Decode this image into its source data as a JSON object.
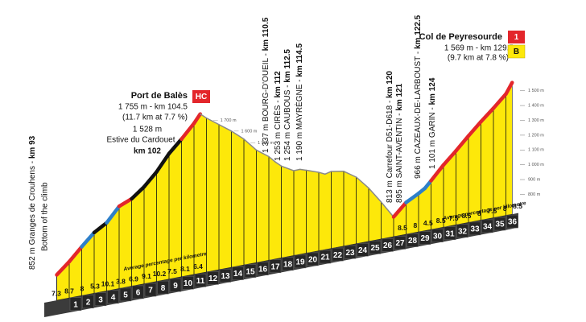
{
  "chart_data": {
    "type": "profile",
    "x": [
      93,
      94,
      95,
      96,
      97,
      98,
      99,
      100,
      101,
      102,
      103,
      104,
      104.5,
      105,
      106,
      107,
      108,
      109,
      110,
      110.5,
      111,
      112,
      112.5,
      113,
      114,
      114.5,
      115,
      116,
      117,
      118,
      119,
      120,
      121,
      122,
      122.5,
      123,
      124,
      125,
      126,
      127,
      128,
      129,
      129.5
    ],
    "values": [
      852,
      925,
      1010,
      1090,
      1140,
      1235,
      1270,
      1335,
      1420,
      1528,
      1610,
      1700,
      1755,
      1720,
      1660,
      1600,
      1530,
      1440,
      1380,
      1337,
      1300,
      1253,
      1254,
      1240,
      1210,
      1190,
      1200,
      1185,
      1130,
      1040,
      930,
      813,
      895,
      940,
      966,
      1010,
      1101,
      1180,
      1265,
      1345,
      1420,
      1500,
      1569
    ],
    "segment_colors": [
      "#e3262b",
      "#e3262b",
      "#2e7fc9",
      "#111111",
      "#2e7fc9",
      "#e3262b",
      "#111111",
      "#111111",
      "#111111",
      "#111111",
      "#e3262b",
      "#e3262b",
      "#8a8a8a",
      "#8a8a8a",
      "#8a8a8a",
      "#8a8a8a",
      "#8a8a8a",
      "#8a8a8a",
      "#8a8a8a",
      "#8a8a8a",
      "#8a8a8a",
      "#8a8a8a",
      "#8a8a8a",
      "#8a8a8a",
      "#8a8a8a",
      "#8a8a8a",
      "#8a8a8a",
      "#8a8a8a",
      "#8a8a8a",
      "#8a8a8a",
      "#8a8a8a",
      "#e3262b",
      "#2e7fc9",
      "#2e7fc9",
      "#2e7fc9",
      "#e3262b",
      "#e3262b",
      "#e3262b",
      "#e3262b",
      "#e3262b",
      "#e3262b",
      "#e3262b",
      "#e3262b"
    ],
    "color": "#fde80a",
    "xlim": [
      92,
      130
    ],
    "ylim": [
      680,
      1800
    ],
    "yticks": [
      {
        "value": 800,
        "label": "800 m"
      },
      {
        "value": 900,
        "label": "900 m"
      },
      {
        "value": 1000,
        "label": "1 000 m"
      },
      {
        "value": 1100,
        "label": "1 100 m"
      },
      {
        "value": 1200,
        "label": "1 200 m"
      },
      {
        "value": 1300,
        "label": "1 300 m"
      },
      {
        "value": 1400,
        "label": "1 400 m"
      },
      {
        "value": 1500,
        "label": "1 500 m"
      }
    ],
    "contour_labels": [
      {
        "value": 1700,
        "label": "1 700 m"
      },
      {
        "value": 1600,
        "label": "1 600 m"
      },
      {
        "value": 1500,
        "label": "1 500 m"
      }
    ],
    "km_labels": [
      1,
      2,
      3,
      4,
      5,
      6,
      7,
      8,
      9,
      10,
      11,
      12,
      13,
      14,
      15,
      16,
      17,
      18,
      19,
      20,
      21,
      22,
      23,
      24,
      25,
      26,
      27,
      28,
      29,
      30,
      31,
      32,
      33,
      34,
      35,
      36
    ],
    "gradients_1": [
      7.3,
      8.7,
      8,
      5.3,
      10.1,
      3.8,
      6.9,
      9.1,
      10.2,
      7.5,
      8.1,
      6.4
    ],
    "gradients_2": [
      8.5,
      8,
      4.5,
      8.5,
      7.5,
      8.5,
      8,
      7.5,
      8,
      8.5
    ],
    "gradient_caption": "Average percentage per kilometre",
    "climbs": [
      {
        "name": "Port de Balès",
        "detail": "1 755 m - km 104.5",
        "stats": "(11.7 km at 7.7 %)",
        "category": "HC"
      },
      {
        "name": "Col de Peyresourde",
        "detail": "1 569 m - km 129.5",
        "stats": "(9.7 km at 7.8 %)",
        "category": "1",
        "bonus": "B"
      }
    ],
    "waypoint": {
      "elevation": "1 528 m",
      "name": "Estive du Cardouet",
      "km": "km 102"
    },
    "start_note": "Bottom of the climb",
    "place_labels": [
      {
        "text": "852 m Granges de Crouhens - ",
        "km": "km 93"
      },
      {
        "text": "1 337 m BOURG-D'OUEIL - ",
        "km": "km 110.5"
      },
      {
        "text": "1 253 m CIRÈS - ",
        "km": "km 112"
      },
      {
        "text": "1 254 m CAUBOUS - ",
        "km": "km 112.5"
      },
      {
        "text": "1 190 m MAYRÈGNE - ",
        "km": "km 114.5"
      },
      {
        "text": "813 m Carrefour D51-D618 - ",
        "km": "km 120"
      },
      {
        "text": "895 m SAINT-AVENTIN - ",
        "km": "km 121"
      },
      {
        "text": "966 m CAZEAUX-DE-LARBOUST - ",
        "km": "km 122.5"
      },
      {
        "text": "1 101 m GARIN - ",
        "km": "km 124"
      }
    ]
  }
}
